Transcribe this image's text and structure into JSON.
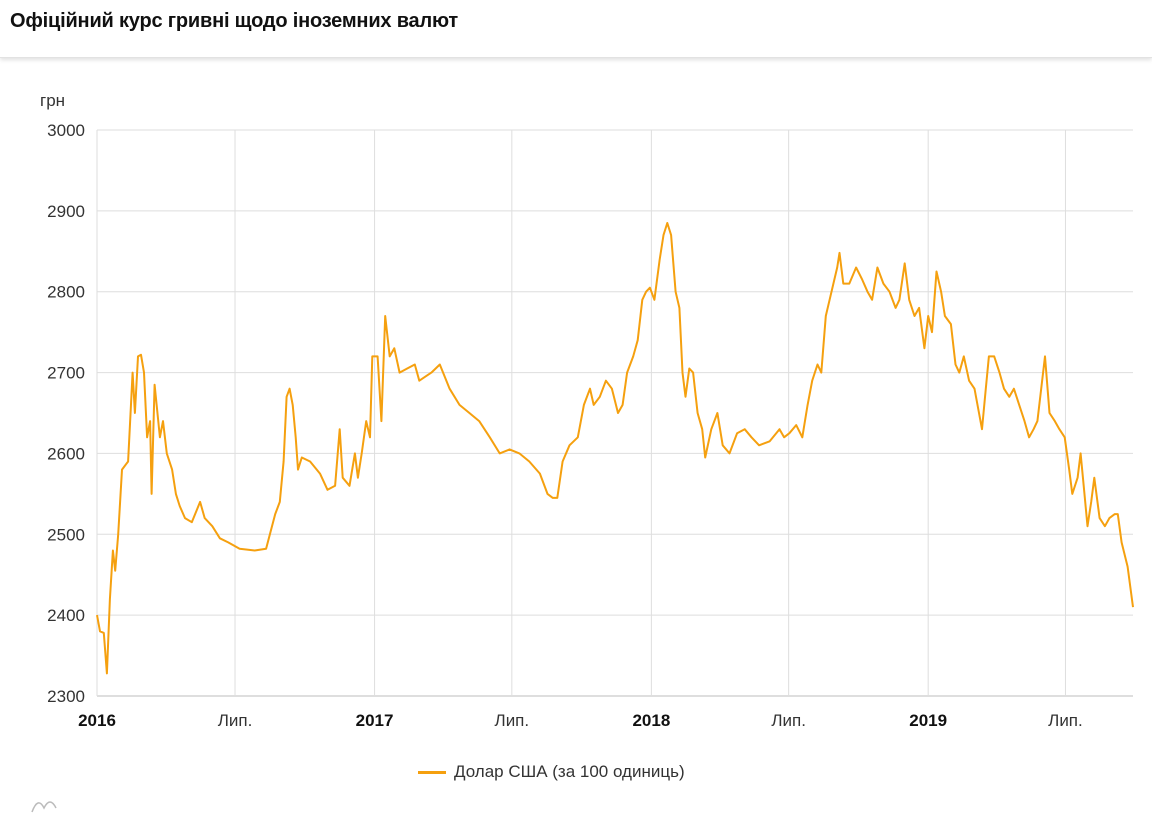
{
  "header": {
    "title": "Офіційний курс гривні щодо іноземних валют"
  },
  "chart_data": {
    "type": "line",
    "title": "",
    "ylabel": "грн",
    "xlabel": "",
    "ylim": [
      2300,
      3000
    ],
    "yticks": [
      2300,
      2400,
      2500,
      2600,
      2700,
      2800,
      2900,
      3000
    ],
    "xlim": [
      "2016-01-01",
      "2019-09-28"
    ],
    "xticks": [
      {
        "date": "2016-01-01",
        "label": "2016",
        "bold": true
      },
      {
        "date": "2016-07-01",
        "label": "Лип.",
        "bold": false
      },
      {
        "date": "2017-01-01",
        "label": "2017",
        "bold": true
      },
      {
        "date": "2017-07-01",
        "label": "Лип.",
        "bold": false
      },
      {
        "date": "2018-01-01",
        "label": "2018",
        "bold": true
      },
      {
        "date": "2018-07-01",
        "label": "Лип.",
        "bold": false
      },
      {
        "date": "2019-01-01",
        "label": "2019",
        "bold": true
      },
      {
        "date": "2019-07-01",
        "label": "Лип.",
        "bold": false
      }
    ],
    "grid": true,
    "legend_position": "bottom",
    "series": [
      {
        "name": "Долар США (за 100 одиниць)",
        "color": "#f5a00f",
        "points": [
          [
            "2016-01-01",
            2400
          ],
          [
            "2016-01-05",
            2380
          ],
          [
            "2016-01-10",
            2378
          ],
          [
            "2016-01-14",
            2328
          ],
          [
            "2016-01-18",
            2420
          ],
          [
            "2016-01-22",
            2480
          ],
          [
            "2016-01-25",
            2455
          ],
          [
            "2016-01-29",
            2500
          ],
          [
            "2016-02-03",
            2580
          ],
          [
            "2016-02-11",
            2590
          ],
          [
            "2016-02-17",
            2700
          ],
          [
            "2016-02-20",
            2650
          ],
          [
            "2016-02-24",
            2720
          ],
          [
            "2016-02-28",
            2722
          ],
          [
            "2016-03-03",
            2700
          ],
          [
            "2016-03-07",
            2620
          ],
          [
            "2016-03-11",
            2640
          ],
          [
            "2016-03-13",
            2550
          ],
          [
            "2016-03-17",
            2685
          ],
          [
            "2016-03-24",
            2620
          ],
          [
            "2016-03-28",
            2640
          ],
          [
            "2016-04-02",
            2600
          ],
          [
            "2016-04-09",
            2580
          ],
          [
            "2016-04-14",
            2550
          ],
          [
            "2016-04-19",
            2535
          ],
          [
            "2016-04-26",
            2520
          ],
          [
            "2016-05-05",
            2515
          ],
          [
            "2016-05-16",
            2540
          ],
          [
            "2016-05-22",
            2520
          ],
          [
            "2016-06-01",
            2510
          ],
          [
            "2016-06-11",
            2495
          ],
          [
            "2016-06-22",
            2490
          ],
          [
            "2016-07-07",
            2482
          ],
          [
            "2016-07-27",
            2480
          ],
          [
            "2016-08-11",
            2482
          ],
          [
            "2016-08-16",
            2500
          ],
          [
            "2016-08-23",
            2525
          ],
          [
            "2016-08-29",
            2540
          ],
          [
            "2016-09-03",
            2590
          ],
          [
            "2016-09-07",
            2670
          ],
          [
            "2016-09-11",
            2680
          ],
          [
            "2016-09-15",
            2660
          ],
          [
            "2016-09-19",
            2620
          ],
          [
            "2016-09-22",
            2580
          ],
          [
            "2016-09-27",
            2595
          ],
          [
            "2016-10-08",
            2590
          ],
          [
            "2016-10-21",
            2575
          ],
          [
            "2016-10-31",
            2555
          ],
          [
            "2016-11-10",
            2560
          ],
          [
            "2016-11-16",
            2630
          ],
          [
            "2016-11-20",
            2570
          ],
          [
            "2016-11-29",
            2560
          ],
          [
            "2016-12-06",
            2600
          ],
          [
            "2016-12-10",
            2570
          ],
          [
            "2016-12-15",
            2600
          ],
          [
            "2016-12-21",
            2640
          ],
          [
            "2016-12-26",
            2620
          ],
          [
            "2016-12-29",
            2720
          ],
          [
            "2017-01-05",
            2720
          ],
          [
            "2017-01-10",
            2640
          ],
          [
            "2017-01-15",
            2770
          ],
          [
            "2017-01-21",
            2720
          ],
          [
            "2017-01-27",
            2730
          ],
          [
            "2017-02-03",
            2700
          ],
          [
            "2017-02-13",
            2705
          ],
          [
            "2017-02-23",
            2710
          ],
          [
            "2017-03-01",
            2690
          ],
          [
            "2017-03-09",
            2695
          ],
          [
            "2017-03-17",
            2700
          ],
          [
            "2017-03-28",
            2710
          ],
          [
            "2017-04-10",
            2680
          ],
          [
            "2017-04-23",
            2660
          ],
          [
            "2017-05-06",
            2650
          ],
          [
            "2017-05-19",
            2640
          ],
          [
            "2017-06-02",
            2620
          ],
          [
            "2017-06-15",
            2600
          ],
          [
            "2017-06-28",
            2605
          ],
          [
            "2017-07-11",
            2600
          ],
          [
            "2017-07-24",
            2590
          ],
          [
            "2017-08-07",
            2575
          ],
          [
            "2017-08-17",
            2550
          ],
          [
            "2017-08-24",
            2545
          ],
          [
            "2017-08-30",
            2545
          ],
          [
            "2017-09-06",
            2590
          ],
          [
            "2017-09-15",
            2610
          ],
          [
            "2017-09-26",
            2620
          ],
          [
            "2017-10-04",
            2660
          ],
          [
            "2017-10-12",
            2680
          ],
          [
            "2017-10-17",
            2660
          ],
          [
            "2017-10-25",
            2670
          ],
          [
            "2017-11-02",
            2690
          ],
          [
            "2017-11-10",
            2680
          ],
          [
            "2017-11-18",
            2650
          ],
          [
            "2017-11-24",
            2660
          ],
          [
            "2017-11-30",
            2700
          ],
          [
            "2017-12-08",
            2720
          ],
          [
            "2017-12-14",
            2740
          ],
          [
            "2017-12-20",
            2790
          ],
          [
            "2017-12-25",
            2800
          ],
          [
            "2017-12-30",
            2805
          ],
          [
            "2018-01-05",
            2790
          ],
          [
            "2018-01-12",
            2840
          ],
          [
            "2018-01-17",
            2870
          ],
          [
            "2018-01-22",
            2885
          ],
          [
            "2018-01-27",
            2870
          ],
          [
            "2018-02-02",
            2800
          ],
          [
            "2018-02-07",
            2780
          ],
          [
            "2018-02-11",
            2700
          ],
          [
            "2018-02-15",
            2670
          ],
          [
            "2018-02-20",
            2705
          ],
          [
            "2018-02-25",
            2700
          ],
          [
            "2018-03-03",
            2650
          ],
          [
            "2018-03-09",
            2630
          ],
          [
            "2018-03-13",
            2595
          ],
          [
            "2018-03-21",
            2630
          ],
          [
            "2018-03-29",
            2650
          ],
          [
            "2018-04-05",
            2610
          ],
          [
            "2018-04-14",
            2600
          ],
          [
            "2018-04-24",
            2625
          ],
          [
            "2018-05-04",
            2630
          ],
          [
            "2018-05-13",
            2620
          ],
          [
            "2018-05-23",
            2610
          ],
          [
            "2018-06-06",
            2615
          ],
          [
            "2018-06-19",
            2630
          ],
          [
            "2018-06-25",
            2620
          ],
          [
            "2018-07-02",
            2625
          ],
          [
            "2018-07-11",
            2635
          ],
          [
            "2018-07-19",
            2620
          ],
          [
            "2018-07-26",
            2660
          ],
          [
            "2018-08-01",
            2690
          ],
          [
            "2018-08-08",
            2710
          ],
          [
            "2018-08-13",
            2700
          ],
          [
            "2018-08-19",
            2770
          ],
          [
            "2018-08-24",
            2790
          ],
          [
            "2018-08-29",
            2810
          ],
          [
            "2018-09-03",
            2830
          ],
          [
            "2018-09-06",
            2848
          ],
          [
            "2018-09-11",
            2810
          ],
          [
            "2018-09-19",
            2810
          ],
          [
            "2018-09-28",
            2830
          ],
          [
            "2018-10-06",
            2815
          ],
          [
            "2018-10-13",
            2800
          ],
          [
            "2018-10-19",
            2790
          ],
          [
            "2018-10-26",
            2830
          ],
          [
            "2018-11-03",
            2810
          ],
          [
            "2018-11-11",
            2800
          ],
          [
            "2018-11-19",
            2780
          ],
          [
            "2018-11-24",
            2790
          ],
          [
            "2018-12-01",
            2835
          ],
          [
            "2018-12-07",
            2790
          ],
          [
            "2018-12-14",
            2770
          ],
          [
            "2018-12-20",
            2780
          ],
          [
            "2018-12-27",
            2730
          ],
          [
            "2019-01-01",
            2770
          ],
          [
            "2019-01-06",
            2750
          ],
          [
            "2019-01-12",
            2825
          ],
          [
            "2019-01-18",
            2800
          ],
          [
            "2019-01-23",
            2770
          ],
          [
            "2019-01-31",
            2760
          ],
          [
            "2019-02-06",
            2710
          ],
          [
            "2019-02-11",
            2700
          ],
          [
            "2019-02-17",
            2720
          ],
          [
            "2019-02-24",
            2690
          ],
          [
            "2019-03-03",
            2680
          ],
          [
            "2019-03-09",
            2650
          ],
          [
            "2019-03-13",
            2630
          ],
          [
            "2019-03-18",
            2680
          ],
          [
            "2019-03-22",
            2720
          ],
          [
            "2019-03-29",
            2720
          ],
          [
            "2019-04-05",
            2700
          ],
          [
            "2019-04-11",
            2680
          ],
          [
            "2019-04-18",
            2670
          ],
          [
            "2019-04-24",
            2680
          ],
          [
            "2019-05-01",
            2660
          ],
          [
            "2019-05-08",
            2640
          ],
          [
            "2019-05-14",
            2620
          ],
          [
            "2019-05-20",
            2630
          ],
          [
            "2019-05-25",
            2640
          ],
          [
            "2019-05-30",
            2680
          ],
          [
            "2019-06-04",
            2720
          ],
          [
            "2019-06-10",
            2650
          ],
          [
            "2019-06-17",
            2640
          ],
          [
            "2019-06-23",
            2630
          ],
          [
            "2019-06-30",
            2620
          ],
          [
            "2019-07-06",
            2580
          ],
          [
            "2019-07-10",
            2550
          ],
          [
            "2019-07-17",
            2570
          ],
          [
            "2019-07-21",
            2600
          ],
          [
            "2019-07-25",
            2560
          ],
          [
            "2019-07-30",
            2510
          ],
          [
            "2019-08-04",
            2540
          ],
          [
            "2019-08-08",
            2570
          ],
          [
            "2019-08-15",
            2520
          ],
          [
            "2019-08-22",
            2510
          ],
          [
            "2019-08-28",
            2520
          ],
          [
            "2019-09-04",
            2525
          ],
          [
            "2019-09-08",
            2525
          ],
          [
            "2019-09-13",
            2490
          ],
          [
            "2019-09-17",
            2475
          ],
          [
            "2019-09-21",
            2460
          ],
          [
            "2019-09-28",
            2410
          ]
        ]
      }
    ]
  }
}
